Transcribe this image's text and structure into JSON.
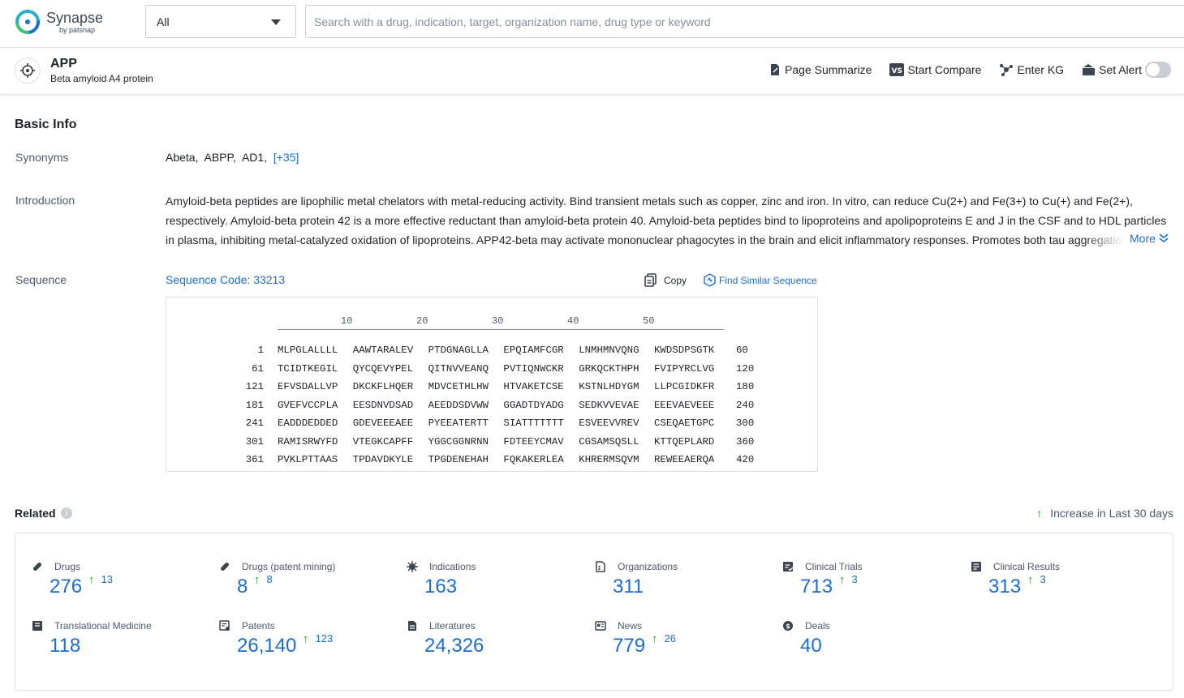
{
  "header": {
    "logo_text": "Synapse",
    "logo_sub": "by patsnap",
    "scope_value": "All",
    "search_placeholder": "Search with a drug, indication, target, organization name, drug type or keyword"
  },
  "target": {
    "name": "APP",
    "full_name": "Beta amyloid A4 protein",
    "actions": {
      "summarize": "Page Summarize",
      "compare": "Start Compare",
      "kg": "Enter KG",
      "alert": "Set Alert"
    }
  },
  "basic_info": {
    "title": "Basic Info",
    "synonyms_label": "Synonyms",
    "synonyms": [
      "Abeta,",
      "ABPP,",
      "AD1,"
    ],
    "synonyms_more": "[+35]",
    "intro_label": "Introduction",
    "intro_text": "Amyloid-beta peptides are lipophilic metal chelators with metal-reducing activity. Bind transient metals such as copper, zinc and iron. In vitro, can reduce Cu(2+) and Fe(3+) to Cu(+) and Fe(2+), respectively. Amyloid-beta protein 42 is a more effective reductant than amyloid-beta protein 40. Amyloid-beta peptides bind to lipoproteins and apolipoproteins E and J in the CSF and to HDL particles in plasma, inhibiting metal-catalyzed oxidation of lipoproteins. APP42-beta may activate mononuclear phagocytes in the brain and elicit inflammatory responses. Promotes both tau aggregation",
    "more_label": "More",
    "sequence_label": "Sequence",
    "sequence_code": "Sequence Code: 33213",
    "copy_label": "Copy",
    "find_label": "Find Similar Sequence",
    "ruler": [
      "10",
      "20",
      "30",
      "40",
      "50"
    ],
    "sequence_rows": [
      {
        "start": "1",
        "chunks": [
          "MLPGLALLLL",
          "AAWTARALEV",
          "PTDGNAGLLA",
          "EPQIAMFCGR",
          "LNMHMNVQNG",
          "KWDSDPSGTK"
        ],
        "end": "60"
      },
      {
        "start": "61",
        "chunks": [
          "TCIDTKEGIL",
          "QYCQEVYPEL",
          "QITNVVEANQ",
          "PVTIQNWCKR",
          "GRKQCKTHPH",
          "FVIPYRCLVG"
        ],
        "end": "120"
      },
      {
        "start": "121",
        "chunks": [
          "EFVSDALLVP",
          "DKCKFLHQER",
          "MDVCETHLHW",
          "HTVAKETCSE",
          "KSTNLHDYGM",
          "LLPCGIDKFR"
        ],
        "end": "180"
      },
      {
        "start": "181",
        "chunks": [
          "GVEFVCCPLA",
          "EESDNVDSAD",
          "AEEDDSDVWW",
          "GGADTDYADG",
          "SEDKVVEVAE",
          "EEEVAEVEEE"
        ],
        "end": "240"
      },
      {
        "start": "241",
        "chunks": [
          "EADDDEDDED",
          "GDEVEEEAEE",
          "PYEEATERTT",
          "SIATTTTTTT",
          "ESVEEVVREV",
          "CSEQAETGPC"
        ],
        "end": "300"
      },
      {
        "start": "301",
        "chunks": [
          "RAMISRWYFD",
          "VTEGKCAPFF",
          "YGGCGGNRNN",
          "FDTEEYCMAV",
          "CGSAMSQSLL",
          "KTTQEPLARD"
        ],
        "end": "360"
      },
      {
        "start": "361",
        "chunks": [
          "PVKLPTTAAS",
          "TPDAVDKYLE",
          "TPGDENEHAH",
          "FQKAKERLEA",
          "KHRERMSQVM",
          "REWEEAERQA"
        ],
        "end": "420"
      }
    ]
  },
  "related": {
    "title": "Related",
    "legend": "Increase in Last 30 days",
    "stats": [
      {
        "label": "Drugs",
        "icon": "pill-icon",
        "value": "276",
        "increase": "13"
      },
      {
        "label": "Drugs (patent mining)",
        "icon": "pill-icon",
        "value": "8",
        "increase": "8"
      },
      {
        "label": "Indications",
        "icon": "virus-icon",
        "value": "163",
        "increase": ""
      },
      {
        "label": "Organizations",
        "icon": "building-icon",
        "value": "311",
        "increase": ""
      },
      {
        "label": "Clinical Trials",
        "icon": "clipboard-icon",
        "value": "713",
        "increase": "3"
      },
      {
        "label": "Clinical Results",
        "icon": "report-icon",
        "value": "313",
        "increase": "3"
      },
      {
        "label": "Translational Medicine",
        "icon": "book-icon",
        "value": "118",
        "increase": ""
      },
      {
        "label": "Patents",
        "icon": "patent-icon",
        "value": "26,140",
        "increase": "123"
      },
      {
        "label": "Literatures",
        "icon": "document-icon",
        "value": "24,326",
        "increase": ""
      },
      {
        "label": "News",
        "icon": "news-icon",
        "value": "779",
        "increase": "26"
      },
      {
        "label": "Deals",
        "icon": "deal-icon",
        "value": "40",
        "increase": ""
      }
    ]
  },
  "colors": {
    "link": "#1c6ed1",
    "increase_arrow": "#2e9b2e",
    "text": "#1f2329",
    "muted": "#4e5969"
  }
}
